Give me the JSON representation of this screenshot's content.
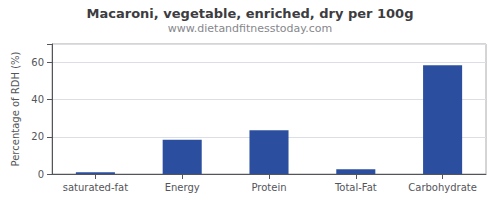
{
  "chart_data": {
    "type": "bar",
    "title": "Macaroni, vegetable, enriched, dry per 100g",
    "subtitle": "www.dietandfitnesstoday.com",
    "categories": [
      "saturated-fat",
      "Energy",
      "Protein",
      "Total-Fat",
      "Carbohydrate"
    ],
    "values": [
      1.0,
      18.5,
      23.5,
      2.5,
      58.5
    ],
    "color": "#2b4f9e",
    "ylabel": "Percentage of RDH (%)",
    "ylim": [
      0,
      70
    ],
    "yticks": [
      0,
      20,
      40,
      60
    ],
    "grid": true
  }
}
